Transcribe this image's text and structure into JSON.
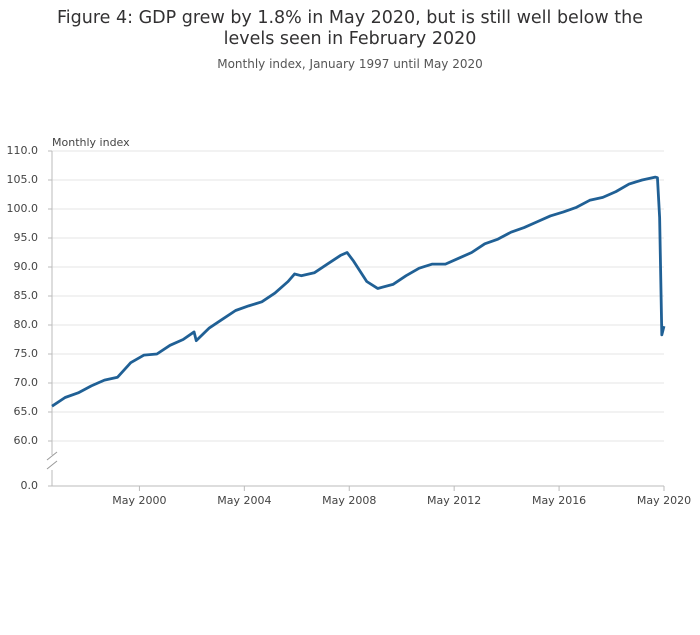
{
  "chart_data": {
    "type": "line",
    "title": "Figure 4: GDP grew by 1.8% in May 2020, but is still well below the levels seen in February 2020",
    "subtitle": "Monthly index, January 1997 until May 2020",
    "y_axis_label": "Monthly index",
    "axis_break": true,
    "grid": true,
    "x": [
      "Jan 1997",
      "Jul 1997",
      "Jan 1998",
      "Jul 1998",
      "Jan 1999",
      "Jul 1999",
      "Jan 2000",
      "Jul 2000",
      "Jan 2001",
      "Jul 2001",
      "Jan 2002",
      "Jun 2002",
      "Jul 2002",
      "Jan 2003",
      "Jul 2003",
      "Jan 2004",
      "Jul 2004",
      "Jan 2005",
      "Jul 2005",
      "Jan 2006",
      "Apr 2006",
      "Jul 2006",
      "Jan 2007",
      "Jul 2007",
      "Jan 2008",
      "Apr 2008",
      "Jul 2008",
      "Jan 2009",
      "Jun 2009",
      "Jan 2010",
      "Jul 2010",
      "Jan 2011",
      "Jul 2011",
      "Jan 2012",
      "Jul 2012",
      "Jan 2013",
      "Jul 2013",
      "Jan 2014",
      "Jul 2014",
      "Jan 2015",
      "Jul 2015",
      "Jan 2016",
      "Jul 2016",
      "Jan 2017",
      "Jul 2017",
      "Jan 2018",
      "Jul 2018",
      "Jan 2019",
      "Jul 2019",
      "Jan 2020",
      "Feb 2020",
      "Mar 2020",
      "Apr 2020",
      "May 2020"
    ],
    "series": [
      {
        "name": "GDP",
        "color": "#206095",
        "values": [
          66.0,
          67.5,
          68.3,
          69.5,
          70.5,
          71.0,
          73.5,
          74.8,
          75.0,
          76.5,
          77.5,
          78.8,
          77.3,
          79.5,
          81.0,
          82.5,
          83.3,
          84.0,
          85.5,
          87.5,
          88.8,
          88.5,
          89.0,
          90.5,
          92.0,
          92.5,
          91.0,
          87.5,
          86.3,
          87.0,
          88.5,
          89.8,
          90.5,
          90.5,
          91.5,
          92.5,
          94.0,
          94.8,
          96.0,
          96.8,
          97.8,
          98.8,
          99.5,
          100.3,
          101.5,
          102.0,
          103.0,
          104.3,
          105.0,
          105.5,
          105.4,
          98.5,
          78.3,
          79.8
        ]
      }
    ],
    "xlim": [
      "Jan 1997",
      "May 2020"
    ],
    "xticks": [
      "May 2000",
      "May 2004",
      "May 2008",
      "May 2012",
      "May 2016",
      "May 2020"
    ],
    "ylim": [
      60,
      110
    ],
    "yticks": [
      {
        "value": 0,
        "label": "0.0"
      },
      {
        "value": 60,
        "label": "60.0"
      },
      {
        "value": 65,
        "label": "65.0"
      },
      {
        "value": 70,
        "label": "70.0"
      },
      {
        "value": 75,
        "label": "75.0"
      },
      {
        "value": 80,
        "label": "80.0"
      },
      {
        "value": 85,
        "label": "85.0"
      },
      {
        "value": 90,
        "label": "90.0"
      },
      {
        "value": 95,
        "label": "95.0"
      },
      {
        "value": 100,
        "label": "100.0"
      },
      {
        "value": 105,
        "label": "105.0"
      },
      {
        "value": 110,
        "label": "110.0"
      }
    ]
  }
}
